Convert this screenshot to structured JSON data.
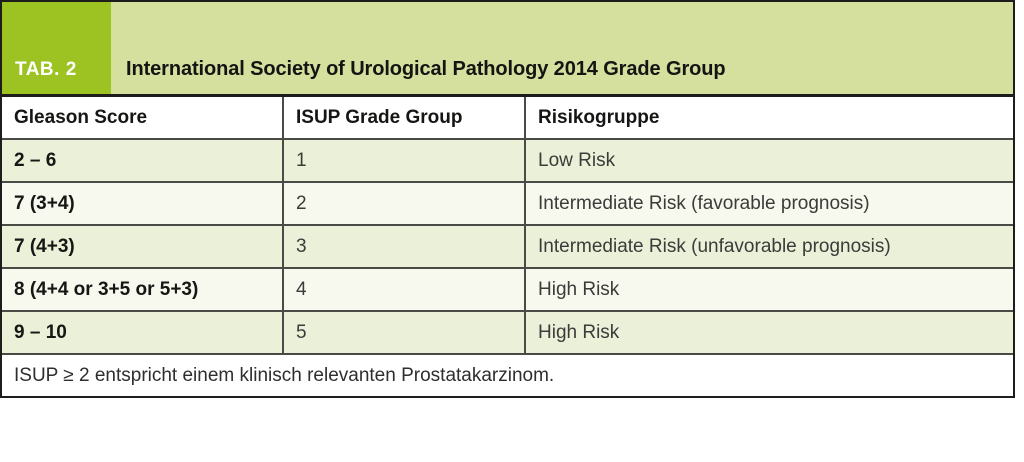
{
  "header": {
    "tag_label": "TAB. 2",
    "title": "International Society of Urological Pathology 2014 Grade Group"
  },
  "table": {
    "columns": [
      "Gleason Score",
      "ISUP Grade Group",
      "Risikogruppe"
    ],
    "rows": [
      [
        "2 – 6",
        "1",
        "Low Risk"
      ],
      [
        "7 (3+4)",
        "2",
        "Intermediate Risk (favorable prognosis)"
      ],
      [
        "7 (4+3)",
        "3",
        "Intermediate Risk (unfavorable prognosis)"
      ],
      [
        "8 (4+4 or 3+5 or 5+3)",
        "4",
        "High Risk"
      ],
      [
        "9 – 10",
        "5",
        "High Risk"
      ]
    ],
    "footnote": "ISUP ≥ 2 entspricht einem klinisch relevanten Prostatakarzinom."
  },
  "colors": {
    "tag_bg": "#9cc322",
    "band_bg": "#d5df9e",
    "row_green": "#ebf0d9",
    "row_pale": "#f7f8ee",
    "border": "#1d1d1b"
  }
}
